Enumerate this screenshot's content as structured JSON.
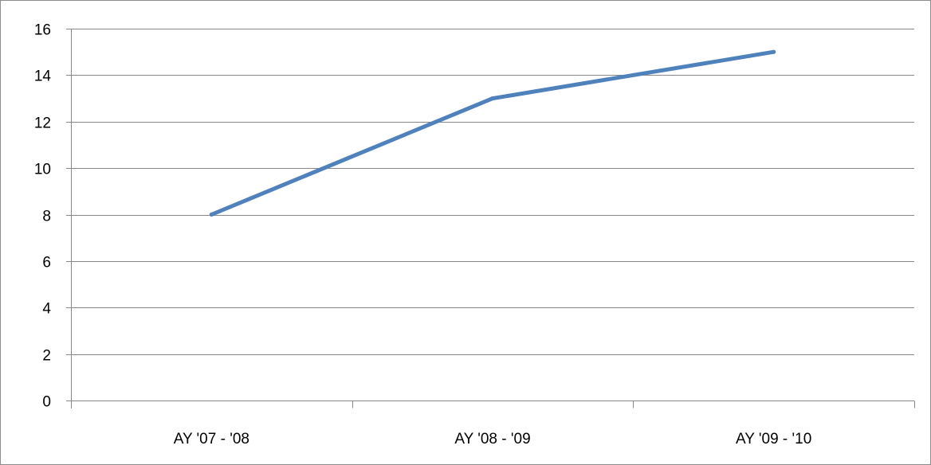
{
  "chart_data": {
    "type": "line",
    "categories": [
      "AY '07 - '08",
      "AY '08 - '09",
      "AY '09 - '10"
    ],
    "series": [
      {
        "values": [
          8,
          13,
          15
        ],
        "color": "#4f81bd"
      }
    ],
    "ylim": [
      0,
      16
    ],
    "yticks": [
      0,
      2,
      4,
      6,
      8,
      10,
      12,
      14,
      16
    ],
    "grid": true,
    "legend": "none",
    "title": "",
    "xlabel": "",
    "ylabel": ""
  },
  "colors": {
    "gridline": "#868686",
    "axis": "#868686",
    "frame": "#8c8c8c"
  }
}
